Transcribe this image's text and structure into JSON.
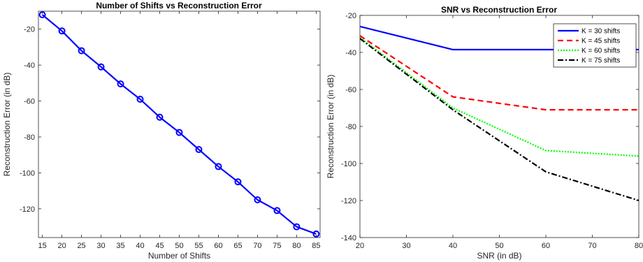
{
  "chart_data": [
    {
      "type": "line",
      "title": "Number of Shifts vs Reconstruction Error",
      "xlabel": "Number of Shifts",
      "ylabel": "Reconstruction Error (in dB)",
      "xlim": [
        14,
        86
      ],
      "ylim": [
        -136,
        -10
      ],
      "xticks": [
        15,
        20,
        25,
        30,
        35,
        40,
        45,
        50,
        55,
        60,
        65,
        70,
        75,
        80,
        85
      ],
      "yticks": [
        -120,
        -100,
        -80,
        -60,
        -40,
        -20
      ],
      "grid": false,
      "series": [
        {
          "color": "#0000ff",
          "style": "solid",
          "marker": "circle",
          "x": [
            15,
            20,
            25,
            30,
            35,
            40,
            45,
            50,
            55,
            60,
            65,
            70,
            75,
            80,
            85
          ],
          "y": [
            -12,
            -21,
            -32,
            -41,
            -50.5,
            -59,
            -69,
            -77.5,
            -87,
            -96.5,
            -105,
            -115,
            -121,
            -130,
            -134
          ]
        }
      ]
    },
    {
      "type": "line",
      "title": "SNR vs Reconstruction Error",
      "xlabel": "SNR (in dB)",
      "ylabel": "Reconstruction Error (in dB)",
      "xlim": [
        20,
        80
      ],
      "ylim": [
        -140,
        -20
      ],
      "xticks": [
        20,
        30,
        40,
        50,
        60,
        70,
        80
      ],
      "yticks": [
        -140,
        -120,
        -100,
        -80,
        -60,
        -40,
        -20
      ],
      "grid": false,
      "legend": "top-right",
      "series": [
        {
          "name": "K = 30 shifts",
          "color": "#0000ff",
          "style": "solid",
          "x": [
            20,
            40,
            60,
            80
          ],
          "y": [
            -26,
            -38.5,
            -38.5,
            -38.5
          ]
        },
        {
          "name": "K = 45 shifts",
          "color": "#ff0000",
          "style": "dashed",
          "x": [
            20,
            40,
            60,
            80
          ],
          "y": [
            -31,
            -64,
            -71,
            -71
          ]
        },
        {
          "name": "K = 60 shifts",
          "color": "#00ff00",
          "style": "dotted",
          "x": [
            20,
            40,
            60,
            80
          ],
          "y": [
            -32,
            -70,
            -93,
            -96
          ]
        },
        {
          "name": "K = 75 shifts",
          "color": "#000000",
          "style": "dash-dot",
          "x": [
            20,
            40,
            60,
            80
          ],
          "y": [
            -32.5,
            -71,
            -104.5,
            -120
          ]
        }
      ]
    }
  ]
}
